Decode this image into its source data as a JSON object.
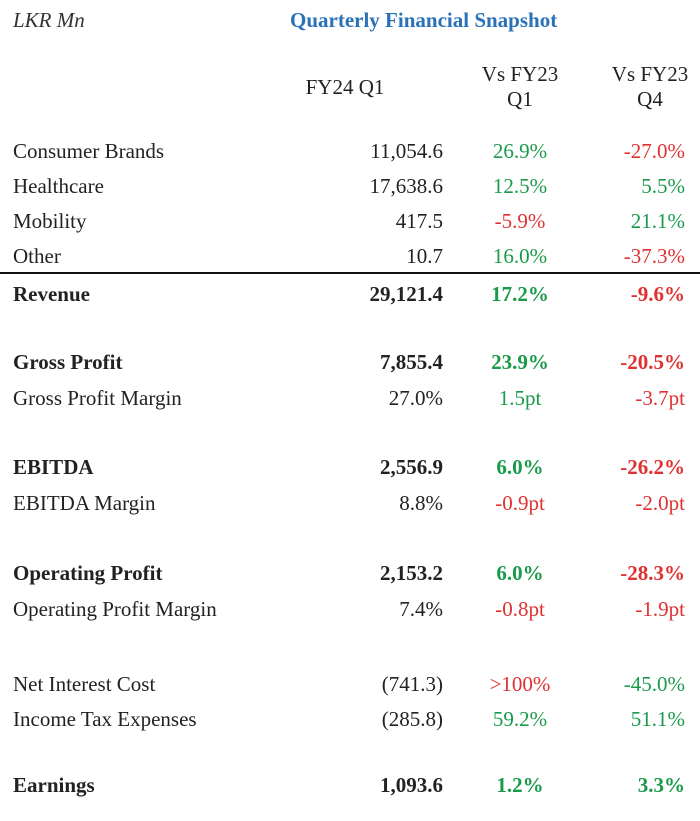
{
  "header": {
    "unit": "LKR Mn",
    "title": "Quarterly Financial Snapshot",
    "col1": "FY24 Q1",
    "col2_line1": "Vs FY23",
    "col2_line2": "Q1",
    "col3_line1": "Vs FY23",
    "col3_line2": "Q4"
  },
  "colors": {
    "positive": "#1a9a4a",
    "negative": "#e03030",
    "title": "#2a72b8"
  },
  "rows": [
    {
      "label": "Consumer Brands",
      "value": "11,054.6",
      "vs_q1": "26.9%",
      "vs_q4": "-27.0%"
    },
    {
      "label": "Healthcare",
      "value": "17,638.6",
      "vs_q1": "12.5%",
      "vs_q4": "5.5%"
    },
    {
      "label": "Mobility",
      "value": "417.5",
      "vs_q1": "-5.9%",
      "vs_q4": "21.1%"
    },
    {
      "label": "Other",
      "value": "10.7",
      "vs_q1": "16.0%",
      "vs_q4": "-37.3%"
    },
    {
      "label": "Revenue",
      "value": "29,121.4",
      "vs_q1": "17.2%",
      "vs_q4": "-9.6%"
    },
    {
      "label": "Gross Profit",
      "value": "7,855.4",
      "vs_q1": "23.9%",
      "vs_q4": "-20.5%"
    },
    {
      "label": "Gross Profit Margin",
      "value": "27.0%",
      "vs_q1": "1.5pt",
      "vs_q4": "-3.7pt"
    },
    {
      "label": "EBITDA",
      "value": "2,556.9",
      "vs_q1": "6.0%",
      "vs_q4": "-26.2%"
    },
    {
      "label": "EBITDA Margin",
      "value": "8.8%",
      "vs_q1": "-0.9pt",
      "vs_q4": "-2.0pt"
    },
    {
      "label": "Operating Profit",
      "value": "2,153.2",
      "vs_q1": "6.0%",
      "vs_q4": "-28.3%"
    },
    {
      "label": "Operating Profit Margin",
      "value": "7.4%",
      "vs_q1": "-0.8pt",
      "vs_q4": "-1.9pt"
    },
    {
      "label": "Net Interest Cost",
      "value": "(741.3)",
      "vs_q1": ">100%",
      "vs_q4": "-45.0%"
    },
    {
      "label": "Income Tax Expenses",
      "value": "(285.8)",
      "vs_q1": "59.2%",
      "vs_q4": "51.1%"
    },
    {
      "label": "Earnings",
      "value": "1,093.6",
      "vs_q1": "1.2%",
      "vs_q4": "3.3%"
    }
  ]
}
